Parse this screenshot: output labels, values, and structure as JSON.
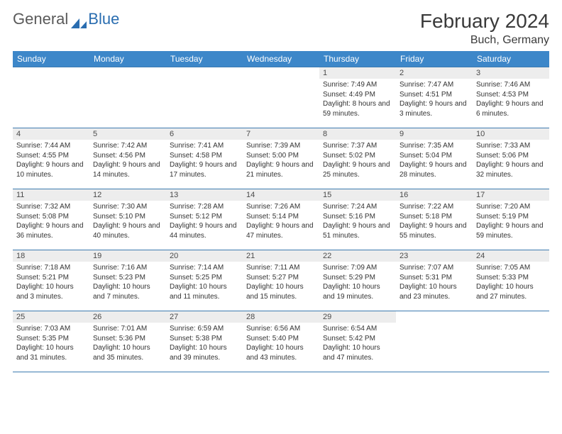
{
  "brand": {
    "part1": "General",
    "part2": "Blue"
  },
  "title": "February 2024",
  "location": "Buch, Germany",
  "colors": {
    "header_bg": "#3d87c9",
    "header_text": "#ffffff",
    "border": "#3d7bb0",
    "daynum_bg": "#ededed",
    "body_text": "#333333",
    "brand_gray": "#5a5a5a",
    "brand_blue": "#2a6db0"
  },
  "weekdays": [
    "Sunday",
    "Monday",
    "Tuesday",
    "Wednesday",
    "Thursday",
    "Friday",
    "Saturday"
  ],
  "layout": {
    "first_weekday_index": 4,
    "days_in_month": 29
  },
  "days": {
    "1": {
      "sunrise": "7:49 AM",
      "sunset": "4:49 PM",
      "daylight": "8 hours and 59 minutes."
    },
    "2": {
      "sunrise": "7:47 AM",
      "sunset": "4:51 PM",
      "daylight": "9 hours and 3 minutes."
    },
    "3": {
      "sunrise": "7:46 AM",
      "sunset": "4:53 PM",
      "daylight": "9 hours and 6 minutes."
    },
    "4": {
      "sunrise": "7:44 AM",
      "sunset": "4:55 PM",
      "daylight": "9 hours and 10 minutes."
    },
    "5": {
      "sunrise": "7:42 AM",
      "sunset": "4:56 PM",
      "daylight": "9 hours and 14 minutes."
    },
    "6": {
      "sunrise": "7:41 AM",
      "sunset": "4:58 PM",
      "daylight": "9 hours and 17 minutes."
    },
    "7": {
      "sunrise": "7:39 AM",
      "sunset": "5:00 PM",
      "daylight": "9 hours and 21 minutes."
    },
    "8": {
      "sunrise": "7:37 AM",
      "sunset": "5:02 PM",
      "daylight": "9 hours and 25 minutes."
    },
    "9": {
      "sunrise": "7:35 AM",
      "sunset": "5:04 PM",
      "daylight": "9 hours and 28 minutes."
    },
    "10": {
      "sunrise": "7:33 AM",
      "sunset": "5:06 PM",
      "daylight": "9 hours and 32 minutes."
    },
    "11": {
      "sunrise": "7:32 AM",
      "sunset": "5:08 PM",
      "daylight": "9 hours and 36 minutes."
    },
    "12": {
      "sunrise": "7:30 AM",
      "sunset": "5:10 PM",
      "daylight": "9 hours and 40 minutes."
    },
    "13": {
      "sunrise": "7:28 AM",
      "sunset": "5:12 PM",
      "daylight": "9 hours and 44 minutes."
    },
    "14": {
      "sunrise": "7:26 AM",
      "sunset": "5:14 PM",
      "daylight": "9 hours and 47 minutes."
    },
    "15": {
      "sunrise": "7:24 AM",
      "sunset": "5:16 PM",
      "daylight": "9 hours and 51 minutes."
    },
    "16": {
      "sunrise": "7:22 AM",
      "sunset": "5:18 PM",
      "daylight": "9 hours and 55 minutes."
    },
    "17": {
      "sunrise": "7:20 AM",
      "sunset": "5:19 PM",
      "daylight": "9 hours and 59 minutes."
    },
    "18": {
      "sunrise": "7:18 AM",
      "sunset": "5:21 PM",
      "daylight": "10 hours and 3 minutes."
    },
    "19": {
      "sunrise": "7:16 AM",
      "sunset": "5:23 PM",
      "daylight": "10 hours and 7 minutes."
    },
    "20": {
      "sunrise": "7:14 AM",
      "sunset": "5:25 PM",
      "daylight": "10 hours and 11 minutes."
    },
    "21": {
      "sunrise": "7:11 AM",
      "sunset": "5:27 PM",
      "daylight": "10 hours and 15 minutes."
    },
    "22": {
      "sunrise": "7:09 AM",
      "sunset": "5:29 PM",
      "daylight": "10 hours and 19 minutes."
    },
    "23": {
      "sunrise": "7:07 AM",
      "sunset": "5:31 PM",
      "daylight": "10 hours and 23 minutes."
    },
    "24": {
      "sunrise": "7:05 AM",
      "sunset": "5:33 PM",
      "daylight": "10 hours and 27 minutes."
    },
    "25": {
      "sunrise": "7:03 AM",
      "sunset": "5:35 PM",
      "daylight": "10 hours and 31 minutes."
    },
    "26": {
      "sunrise": "7:01 AM",
      "sunset": "5:36 PM",
      "daylight": "10 hours and 35 minutes."
    },
    "27": {
      "sunrise": "6:59 AM",
      "sunset": "5:38 PM",
      "daylight": "10 hours and 39 minutes."
    },
    "28": {
      "sunrise": "6:56 AM",
      "sunset": "5:40 PM",
      "daylight": "10 hours and 43 minutes."
    },
    "29": {
      "sunrise": "6:54 AM",
      "sunset": "5:42 PM",
      "daylight": "10 hours and 47 minutes."
    }
  },
  "labels": {
    "sunrise": "Sunrise:",
    "sunset": "Sunset:",
    "daylight": "Daylight:"
  }
}
